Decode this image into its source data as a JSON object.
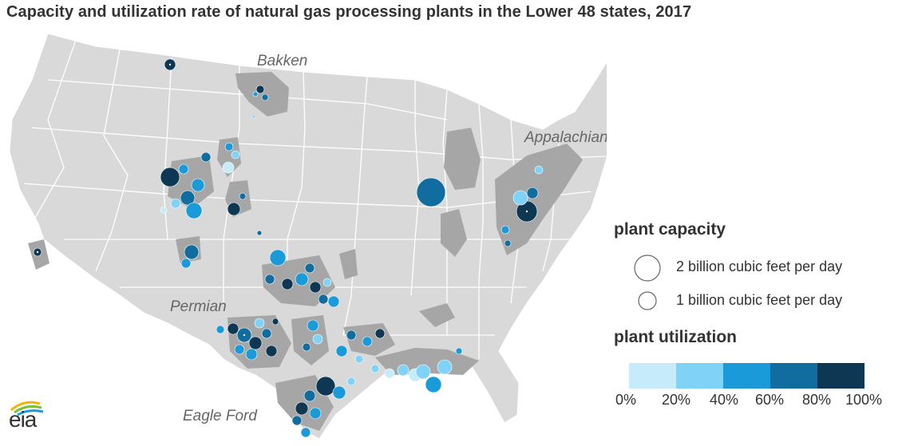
{
  "title": "Capacity and utilization rate of natural gas processing plants in the Lower 48 states, 2017",
  "regions": {
    "bakken": "Bakken",
    "appalachian": "Appalachian",
    "permian": "Permian",
    "eagle_ford": "Eagle Ford"
  },
  "legend": {
    "capacity_heading": "plant capacity",
    "capacity_items": [
      {
        "label": "2 billion cubic feet per day",
        "value_bcf_per_day": 2
      },
      {
        "label": "1 billion cubic feet per day",
        "value_bcf_per_day": 1
      }
    ],
    "utilization_heading": "plant utilization",
    "utilization_colors": [
      "#c6ecfb",
      "#80d3f7",
      "#1a9ad8",
      "#116d9f",
      "#0d3753"
    ],
    "utilization_ticks": [
      "0%",
      "20%",
      "40%",
      "60%",
      "80%",
      "100%"
    ]
  },
  "colors": {
    "land": "#d9d9d9",
    "state_border": "#ffffff",
    "basin": "#a6a6a6"
  },
  "logo": {
    "text": "eia"
  }
}
